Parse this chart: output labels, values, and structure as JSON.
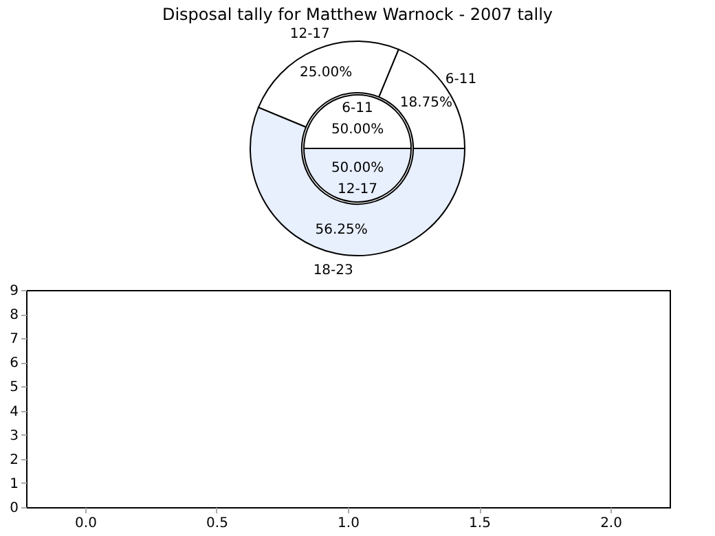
{
  "chart_data": [
    {
      "type": "donut",
      "title": "Disposal tally for Matthew Warnock - 2007 tally",
      "categories": [
        "6-11",
        "12-17",
        "18-23"
      ],
      "values": [
        18.75,
        25,
        56.25
      ],
      "colors": [
        "#ffffff",
        "#ffffff",
        "#e8effd"
      ],
      "value_labels": [
        "18.75%",
        "25.00%",
        "56.25%"
      ]
    },
    {
      "type": "pie",
      "categories": [
        "6-11",
        "12-17"
      ],
      "values": [
        50,
        50
      ],
      "colors": [
        "#ffffff",
        "#e8effd"
      ],
      "value_labels": [
        "50.00%",
        "50.00%"
      ]
    },
    {
      "type": "bar",
      "xlim": [
        -0.225,
        2.225
      ],
      "xticks": [
        {
          "value": 0,
          "label": "0.0"
        },
        {
          "value": 0.5,
          "label": "0.5"
        },
        {
          "value": 1,
          "label": "1.0"
        },
        {
          "value": 1.5,
          "label": "1.5"
        },
        {
          "value": 2,
          "label": "2.0"
        }
      ],
      "ylim": [
        0,
        9
      ],
      "yticks": [
        0,
        1,
        2,
        3,
        4,
        5,
        6,
        7,
        8,
        9
      ]
    }
  ]
}
